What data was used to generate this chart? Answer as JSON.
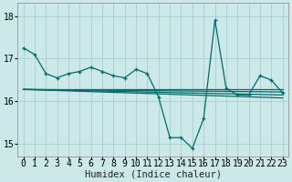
{
  "xlabel": "Humidex (Indice chaleur)",
  "background_color": "#cce8e8",
  "grid_color": "#aad4d4",
  "line_color": "#006b6b",
  "xlim": [
    -0.5,
    23.5
  ],
  "ylim": [
    14.7,
    18.3
  ],
  "yticks": [
    15,
    16,
    17,
    18
  ],
  "xticks": [
    0,
    1,
    2,
    3,
    4,
    5,
    6,
    7,
    8,
    9,
    10,
    11,
    12,
    13,
    14,
    15,
    16,
    17,
    18,
    19,
    20,
    21,
    22,
    23
  ],
  "series1_x": [
    0,
    1,
    2,
    3,
    4,
    5,
    6,
    7,
    8,
    9,
    10,
    11,
    12,
    13,
    14,
    15,
    16,
    17,
    18,
    19,
    20,
    21,
    22,
    23
  ],
  "series1_y": [
    17.25,
    17.1,
    16.65,
    16.55,
    16.65,
    16.7,
    16.8,
    16.7,
    16.6,
    16.55,
    16.75,
    16.65,
    16.1,
    15.15,
    15.15,
    14.9,
    15.6,
    17.9,
    16.3,
    16.15,
    16.15,
    16.6,
    16.5,
    16.2
  ],
  "series2_x": [
    0,
    1,
    2,
    3,
    4,
    5,
    6,
    7,
    8,
    9,
    10,
    11,
    12,
    13,
    14,
    15,
    16,
    17,
    18,
    19,
    20,
    21,
    22,
    23
  ],
  "series2_y": [
    16.28,
    16.28,
    16.28,
    16.28,
    16.28,
    16.28,
    16.28,
    16.28,
    16.28,
    16.28,
    16.28,
    16.28,
    16.28,
    16.28,
    16.28,
    16.28,
    16.28,
    16.28,
    16.28,
    16.28,
    16.28,
    16.28,
    16.28,
    16.28
  ],
  "series3_x": [
    0,
    23
  ],
  "series3_y": [
    16.28,
    16.22
  ],
  "series4_x": [
    0,
    23
  ],
  "series4_y": [
    16.28,
    16.15
  ],
  "series5_x": [
    0,
    23
  ],
  "series5_y": [
    16.28,
    16.08
  ],
  "tick_fontsize": 7
}
